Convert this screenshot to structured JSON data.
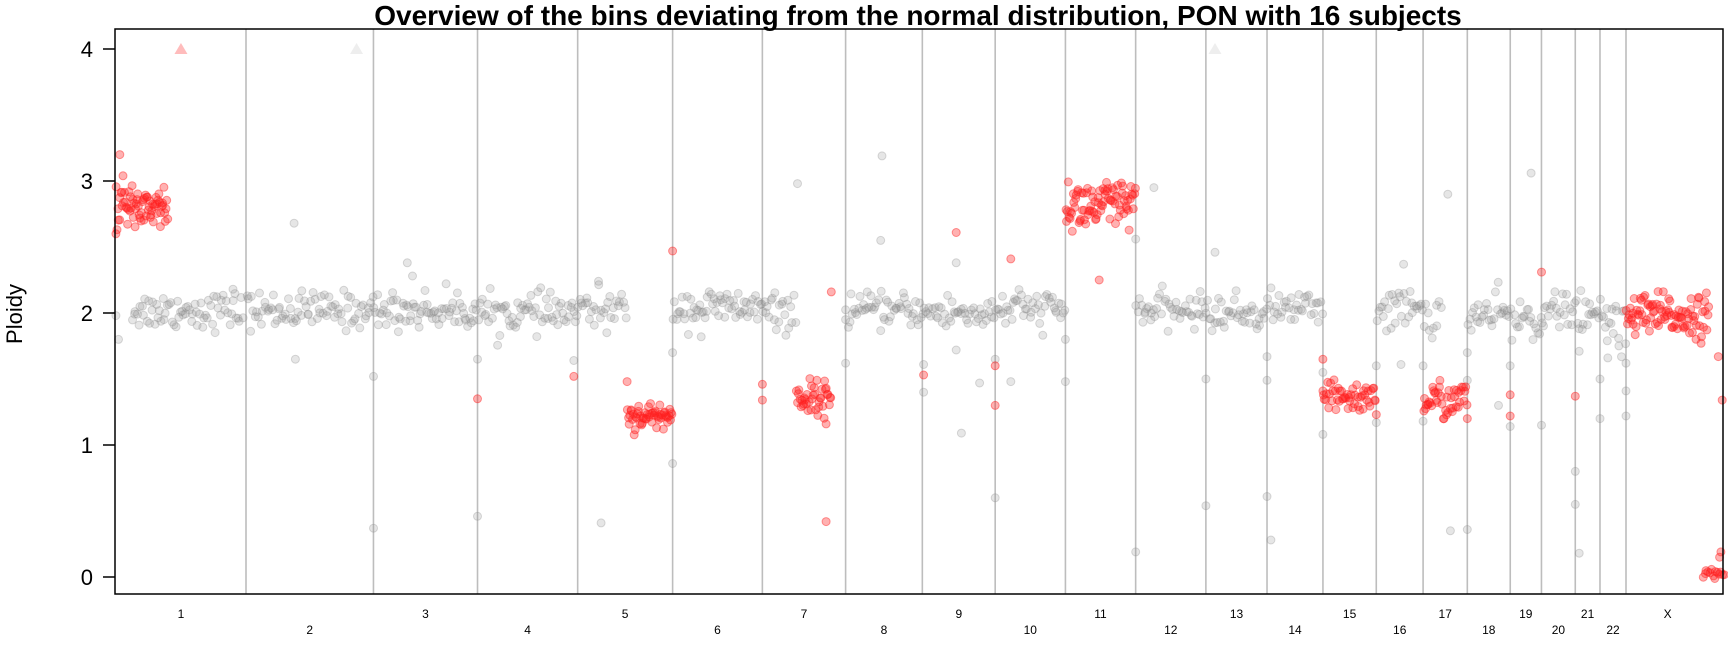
{
  "chart_data": {
    "type": "scatter",
    "title": "Overview of the bins deviating from the normal distribution, PON with 16 subjects",
    "ylabel": "Ploidy",
    "xlabel": "",
    "ylim": [
      -0.15,
      4.15
    ],
    "yticks": [
      0,
      1,
      2,
      3,
      4
    ],
    "grid": "vertical chromosome separators",
    "colors": {
      "normal": "#8c8c8c",
      "deviating": "#ff2020",
      "separator": "#bdbdbd",
      "axis": "#000000"
    },
    "chromosomes": [
      {
        "label": "1",
        "start": 0,
        "end": 1.0
      },
      {
        "label": "2",
        "start": 1.0,
        "end": 1.98
      },
      {
        "label": "3",
        "start": 1.98,
        "end": 2.78
      },
      {
        "label": "4",
        "start": 2.78,
        "end": 3.55
      },
      {
        "label": "5",
        "start": 3.55,
        "end": 4.28
      },
      {
        "label": "6",
        "start": 4.28,
        "end": 4.97
      },
      {
        "label": "7",
        "start": 4.97,
        "end": 5.61
      },
      {
        "label": "8",
        "start": 5.61,
        "end": 6.2
      },
      {
        "label": "9",
        "start": 6.2,
        "end": 6.76
      },
      {
        "label": "10",
        "start": 6.76,
        "end": 7.3
      },
      {
        "label": "11",
        "start": 7.3,
        "end": 7.84
      },
      {
        "label": "12",
        "start": 7.84,
        "end": 8.38
      },
      {
        "label": "13",
        "start": 8.38,
        "end": 8.85
      },
      {
        "label": "14",
        "start": 8.85,
        "end": 9.28
      },
      {
        "label": "15",
        "start": 9.28,
        "end": 9.69
      },
      {
        "label": "16",
        "start": 9.69,
        "end": 10.05
      },
      {
        "label": "17",
        "start": 10.05,
        "end": 10.39
      },
      {
        "label": "18",
        "start": 10.39,
        "end": 10.72
      },
      {
        "label": "19",
        "start": 10.72,
        "end": 10.96
      },
      {
        "label": "20",
        "start": 10.96,
        "end": 11.22
      },
      {
        "label": "21",
        "start": 11.22,
        "end": 11.41
      },
      {
        "label": "22",
        "start": 11.41,
        "end": 11.61
      },
      {
        "label": "X",
        "start": 11.61,
        "end": 12.25
      }
    ],
    "series": [
      {
        "status": "normal",
        "segments": [
          {
            "x0": 0.12,
            "x1": 0.98,
            "mean": 2.02,
            "sd": 0.07,
            "n": 70
          },
          {
            "x0": 1.0,
            "x1": 1.98,
            "mean": 2.02,
            "sd": 0.07,
            "n": 80
          },
          {
            "x0": 1.98,
            "x1": 2.78,
            "mean": 2.02,
            "sd": 0.07,
            "n": 70
          },
          {
            "x0": 2.78,
            "x1": 3.55,
            "mean": 2.0,
            "sd": 0.07,
            "n": 65
          },
          {
            "x0": 3.55,
            "x1": 3.93,
            "mean": 2.02,
            "sd": 0.07,
            "n": 30
          },
          {
            "x0": 4.28,
            "x1": 4.97,
            "mean": 2.04,
            "sd": 0.07,
            "n": 60
          },
          {
            "x0": 4.97,
            "x1": 5.23,
            "mean": 2.0,
            "sd": 0.07,
            "n": 22
          },
          {
            "x0": 5.61,
            "x1": 6.2,
            "mean": 2.02,
            "sd": 0.06,
            "n": 50
          },
          {
            "x0": 6.2,
            "x1": 6.76,
            "mean": 2.0,
            "sd": 0.07,
            "n": 45
          },
          {
            "x0": 6.76,
            "x1": 7.3,
            "mean": 2.03,
            "sd": 0.07,
            "n": 45
          },
          {
            "x0": 7.84,
            "x1": 8.38,
            "mean": 2.02,
            "sd": 0.06,
            "n": 45
          },
          {
            "x0": 8.38,
            "x1": 8.85,
            "mean": 2.0,
            "sd": 0.07,
            "n": 40
          },
          {
            "x0": 8.85,
            "x1": 9.28,
            "mean": 2.04,
            "sd": 0.06,
            "n": 35
          },
          {
            "x0": 9.69,
            "x1": 10.05,
            "mean": 2.03,
            "sd": 0.08,
            "n": 30
          },
          {
            "x0": 10.05,
            "x1": 10.2,
            "mean": 1.98,
            "sd": 0.07,
            "n": 10
          },
          {
            "x0": 10.39,
            "x1": 10.72,
            "mean": 1.98,
            "sd": 0.08,
            "n": 28
          },
          {
            "x0": 10.72,
            "x1": 10.96,
            "mean": 1.95,
            "sd": 0.09,
            "n": 20
          },
          {
            "x0": 10.96,
            "x1": 11.22,
            "mean": 2.02,
            "sd": 0.06,
            "n": 22
          },
          {
            "x0": 11.22,
            "x1": 11.41,
            "mean": 1.97,
            "sd": 0.09,
            "n": 16
          },
          {
            "x0": 11.41,
            "x1": 11.61,
            "mean": 1.92,
            "sd": 0.12,
            "n": 18
          }
        ],
        "outliers": [
          [
            0.0,
            1.98
          ],
          [
            0.02,
            1.8
          ],
          [
            0.9,
            2.18
          ],
          [
            1.37,
            2.68
          ],
          [
            1.38,
            1.65
          ],
          [
            1.98,
            0.37
          ],
          [
            1.98,
            1.52
          ],
          [
            2.24,
            2.38
          ],
          [
            2.28,
            2.28
          ],
          [
            2.78,
            1.65
          ],
          [
            2.78,
            0.46
          ],
          [
            3.52,
            1.64
          ],
          [
            3.73,
            0.41
          ],
          [
            3.71,
            2.24
          ],
          [
            4.28,
            0.86
          ],
          [
            4.28,
            1.7
          ],
          [
            4.5,
            1.82
          ],
          [
            5.24,
            2.98
          ],
          [
            5.61,
            1.62
          ],
          [
            5.61,
            1.95
          ],
          [
            5.89,
            3.19
          ],
          [
            5.88,
            2.55
          ],
          [
            6.21,
            1.61
          ],
          [
            6.21,
            1.4
          ],
          [
            6.46,
            2.38
          ],
          [
            6.46,
            1.72
          ],
          [
            6.5,
            1.09
          ],
          [
            6.64,
            1.47
          ],
          [
            6.76,
            0.6
          ],
          [
            6.76,
            1.65
          ],
          [
            6.88,
            1.48
          ],
          [
            7.3,
            1.48
          ],
          [
            7.3,
            1.8
          ],
          [
            7.84,
            0.19
          ],
          [
            7.84,
            2.56
          ],
          [
            7.98,
            2.95
          ],
          [
            8.38,
            1.5
          ],
          [
            8.38,
            0.54
          ],
          [
            8.45,
            2.46
          ],
          [
            8.85,
            1.67
          ],
          [
            8.85,
            1.49
          ],
          [
            8.85,
            0.61
          ],
          [
            8.88,
            0.28
          ],
          [
            9.28,
            1.08
          ],
          [
            9.28,
            1.55
          ],
          [
            9.69,
            1.6
          ],
          [
            9.69,
            1.17
          ],
          [
            9.88,
            1.61
          ],
          [
            9.9,
            2.37
          ],
          [
            10.05,
            1.6
          ],
          [
            10.05,
            1.18
          ],
          [
            10.26,
            0.35
          ],
          [
            10.24,
            2.9
          ],
          [
            10.39,
            1.7
          ],
          [
            10.39,
            1.49
          ],
          [
            10.39,
            0.36
          ],
          [
            10.63,
            1.3
          ],
          [
            10.72,
            1.6
          ],
          [
            10.72,
            1.14
          ],
          [
            10.88,
            3.06
          ],
          [
            10.96,
            1.15
          ],
          [
            11.22,
            0.55
          ],
          [
            11.22,
            0.8
          ],
          [
            11.25,
            0.18
          ],
          [
            11.25,
            1.71
          ],
          [
            11.41,
            1.2
          ],
          [
            11.41,
            1.5
          ],
          [
            11.47,
            1.66
          ],
          [
            11.61,
            1.22
          ],
          [
            11.61,
            1.41
          ],
          [
            11.61,
            1.62
          ]
        ],
        "triangles": [
          [
            1.85,
            4.0
          ],
          [
            8.45,
            4.0
          ]
        ]
      },
      {
        "status": "deviating",
        "segments": [
          {
            "x0": 0.0,
            "x1": 0.4,
            "mean": 2.81,
            "sd": 0.09,
            "n": 70
          },
          {
            "x0": 3.93,
            "x1": 4.28,
            "mean": 1.22,
            "sd": 0.05,
            "n": 55
          },
          {
            "x0": 5.23,
            "x1": 5.5,
            "mean": 1.36,
            "sd": 0.06,
            "n": 40
          },
          {
            "x0": 7.3,
            "x1": 7.84,
            "mean": 2.81,
            "sd": 0.1,
            "n": 85
          },
          {
            "x0": 9.28,
            "x1": 9.69,
            "mean": 1.36,
            "sd": 0.06,
            "n": 50
          },
          {
            "x0": 10.05,
            "x1": 10.39,
            "mean": 1.34,
            "sd": 0.07,
            "n": 45
          },
          {
            "x0": 11.61,
            "x1": 12.25,
            "mean": 1.98,
            "sd": 0.08,
            "n": 95
          },
          {
            "x0": 12.2,
            "x1": 12.37,
            "mean": 0.02,
            "sd": 0.02,
            "n": 14
          }
        ],
        "outliers": [
          [
            0.03,
            3.2
          ],
          [
            0.0,
            2.6
          ],
          [
            2.78,
            1.35
          ],
          [
            3.52,
            1.52
          ],
          [
            3.93,
            1.48
          ],
          [
            4.28,
            2.47
          ],
          [
            4.97,
            1.46
          ],
          [
            4.97,
            1.34
          ],
          [
            5.46,
            1.16
          ],
          [
            5.46,
            0.42
          ],
          [
            5.5,
            2.16
          ],
          [
            6.21,
            1.53
          ],
          [
            6.46,
            2.61
          ],
          [
            6.76,
            1.6
          ],
          [
            6.76,
            1.3
          ],
          [
            6.88,
            2.41
          ],
          [
            7.56,
            2.25
          ],
          [
            9.28,
            1.41
          ],
          [
            9.28,
            1.65
          ],
          [
            9.69,
            1.23
          ],
          [
            10.39,
            1.2
          ],
          [
            10.72,
            1.38
          ],
          [
            10.72,
            1.22
          ],
          [
            10.96,
            2.31
          ],
          [
            11.22,
            1.37
          ],
          [
            12.35,
            1.34
          ],
          [
            12.34,
            0.19
          ],
          [
            12.33,
            0.15
          ],
          [
            12.32,
            1.67
          ]
        ],
        "triangles": [
          [
            0.5,
            4.0
          ]
        ]
      }
    ]
  }
}
